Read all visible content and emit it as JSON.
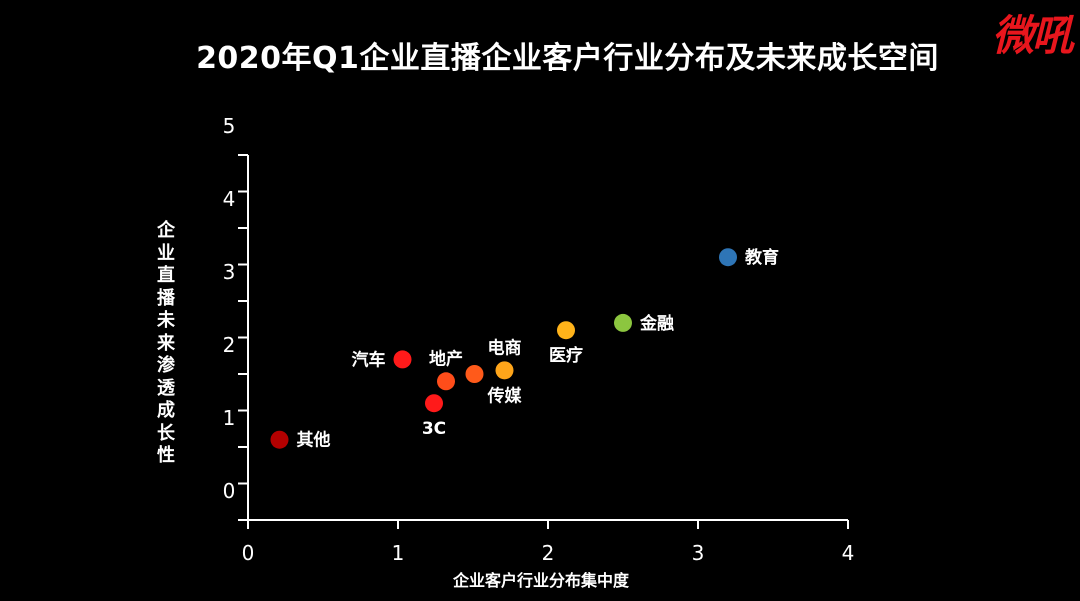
{
  "chart_data": {
    "type": "scatter",
    "title": "2020年Q1企业直播企业客户行业分布及未来成长空间",
    "xlabel": "企业客户行业分布集中度",
    "ylabel": "企业直播未来渗透成长性",
    "xlim": [
      0,
      4
    ],
    "ylim": [
      0,
      5
    ],
    "x_ticks": [
      "0",
      "1",
      "2",
      "3",
      "4"
    ],
    "y_ticks": [
      "0",
      "1",
      "2",
      "3",
      "4",
      "5"
    ],
    "points": [
      {
        "label": "其他",
        "x": 0.21,
        "y": 1.1,
        "color": "#b30000",
        "label_pos": "right"
      },
      {
        "label": "汽车",
        "x": 1.03,
        "y": 2.2,
        "color": "#ff1a1a",
        "label_pos": "left"
      },
      {
        "label": "地产",
        "x": 1.32,
        "y": 1.9,
        "color": "#ff4d1a",
        "label_pos": "above"
      },
      {
        "label": "3C",
        "x": 1.24,
        "y": 1.6,
        "color": "#ff1a1a",
        "label_pos": "below"
      },
      {
        "label": "",
        "x": 1.51,
        "y": 2.0,
        "color": "#ff5a1a"
      },
      {
        "label": "电商",
        "x": 1.71,
        "y": 2.05,
        "color": "#ffa51a",
        "label_pos": "above"
      },
      {
        "label": "传媒",
        "x": 1.71,
        "y": 2.05,
        "color": "#ffa51a",
        "label_pos": "below"
      },
      {
        "label": "医疗",
        "x": 2.12,
        "y": 2.6,
        "color": "#ffb31a",
        "label_pos": "below"
      },
      {
        "label": "金融",
        "x": 2.5,
        "y": 2.7,
        "color": "#8cc63f",
        "label_pos": "right"
      },
      {
        "label": "教育",
        "x": 3.2,
        "y": 3.6,
        "color": "#2e75b6",
        "label_pos": "right"
      }
    ]
  },
  "logo_text": "微吼"
}
